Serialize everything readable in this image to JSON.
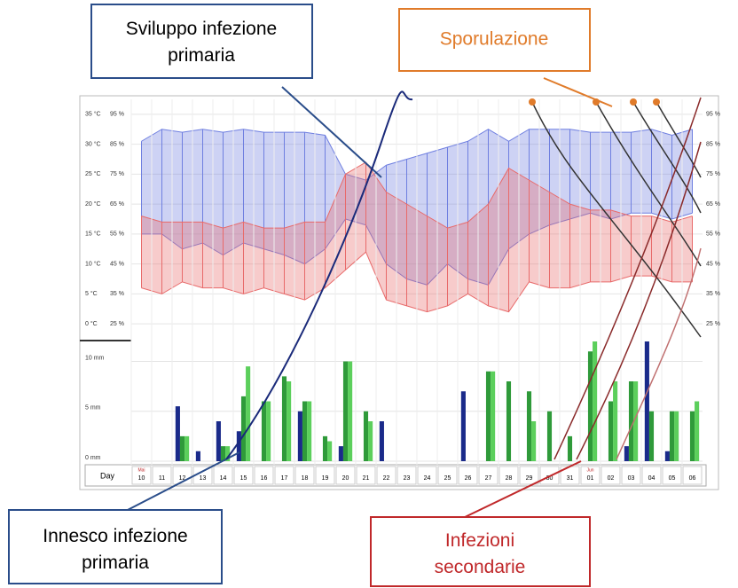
{
  "annotations": {
    "primary_development": "Sviluppo infezione primaria",
    "sporulation": "Sporulazione",
    "primary_trigger": "Innesco infezione primaria",
    "secondary_infections": "Infezioni secondarie"
  },
  "day_label": "Day",
  "months": [
    "Mai",
    "Jun"
  ],
  "chart_data": [
    {
      "type": "range",
      "categories": [
        "10",
        "11",
        "12",
        "13",
        "14",
        "15",
        "16",
        "17",
        "18",
        "19",
        "20",
        "21",
        "22",
        "23",
        "24",
        "25",
        "26",
        "27",
        "28",
        "29",
        "30",
        "31",
        "01",
        "02",
        "03",
        "04",
        "05",
        "06"
      ],
      "series": [
        {
          "color": "#6f7fe0",
          "axis": "y",
          "max": [
            86,
            90,
            89,
            90,
            89,
            90,
            89,
            89,
            89,
            88,
            75,
            73,
            78,
            80,
            82,
            84,
            86,
            90,
            86,
            90,
            90,
            90,
            89,
            89,
            89,
            90,
            88,
            90
          ],
          "min": [
            55,
            55,
            50,
            52,
            48,
            52,
            50,
            48,
            45,
            50,
            60,
            58,
            45,
            40,
            38,
            45,
            40,
            38,
            50,
            55,
            58,
            60,
            62,
            60,
            62,
            62,
            60,
            62
          ]
        },
        {
          "color": "#e86a6a",
          "axis": "y2",
          "max": [
            18,
            17,
            17,
            17,
            16,
            17,
            16,
            16,
            17,
            17,
            25,
            27,
            22,
            20,
            18,
            16,
            17,
            20,
            26,
            24,
            22,
            20,
            19,
            19,
            18,
            18,
            17,
            18
          ],
          "min": [
            6,
            5,
            7,
            6,
            6,
            5,
            6,
            5,
            4,
            6,
            9,
            12,
            4,
            3,
            2,
            3,
            5,
            3,
            2,
            7,
            6,
            6,
            7,
            7,
            8,
            8,
            7,
            7
          ]
        }
      ],
      "ylim": [
        20,
        100
      ],
      "yticks": [
        {
          "value": 95,
          "label": "95 %"
        },
        {
          "value": 85,
          "label": "85 %"
        },
        {
          "value": 75,
          "label": "75 %"
        },
        {
          "value": 65,
          "label": "65 %"
        },
        {
          "value": 55,
          "label": "55 %"
        },
        {
          "value": 45,
          "label": "45 %"
        },
        {
          "value": 35,
          "label": "35 %"
        },
        {
          "value": 25,
          "label": "25 %"
        }
      ],
      "y2lim": [
        -2.5,
        37.5
      ],
      "y2ticks": [
        {
          "value": 35,
          "label": "35 °C"
        },
        {
          "value": 30,
          "label": "30 °C"
        },
        {
          "value": 25,
          "label": "25 °C"
        },
        {
          "value": 20,
          "label": "20 °C"
        },
        {
          "value": 15,
          "label": "15 °C"
        },
        {
          "value": 10,
          "label": "10 °C"
        },
        {
          "value": 5,
          "label": "5 °C"
        },
        {
          "value": 0,
          "label": "0 °C"
        }
      ]
    },
    {
      "type": "bar",
      "series": [
        {
          "color": "#1a2a8a",
          "values": [
            0,
            0,
            5.5,
            1,
            4,
            3,
            0,
            0,
            5,
            0,
            1.5,
            0,
            4,
            0,
            0,
            0,
            7,
            0,
            0,
            0,
            0,
            0,
            0,
            0,
            1.5,
            12,
            1,
            0
          ]
        },
        {
          "color": "#2f9a3a",
          "values": [
            0,
            0,
            2.5,
            0,
            1.5,
            6.5,
            6,
            8.5,
            6,
            2.5,
            10,
            5,
            0,
            0,
            0,
            0,
            0,
            9,
            8,
            7,
            5,
            2.5,
            11,
            6,
            8,
            5,
            5,
            5
          ]
        },
        {
          "color": "#5ccf5c",
          "values": [
            0,
            0,
            2.5,
            0,
            1.5,
            9.5,
            6,
            8,
            6,
            2,
            10,
            4,
            0,
            0,
            0,
            0,
            0,
            9,
            0,
            4,
            0,
            0,
            12,
            8,
            8,
            0,
            5,
            6
          ]
        }
      ],
      "ylim": [
        0,
        12
      ],
      "yticks": [
        {
          "value": 10,
          "label": "10 mm"
        },
        {
          "value": 5,
          "label": "5 mm"
        },
        {
          "value": 0,
          "label": "0 mm"
        }
      ]
    }
  ]
}
